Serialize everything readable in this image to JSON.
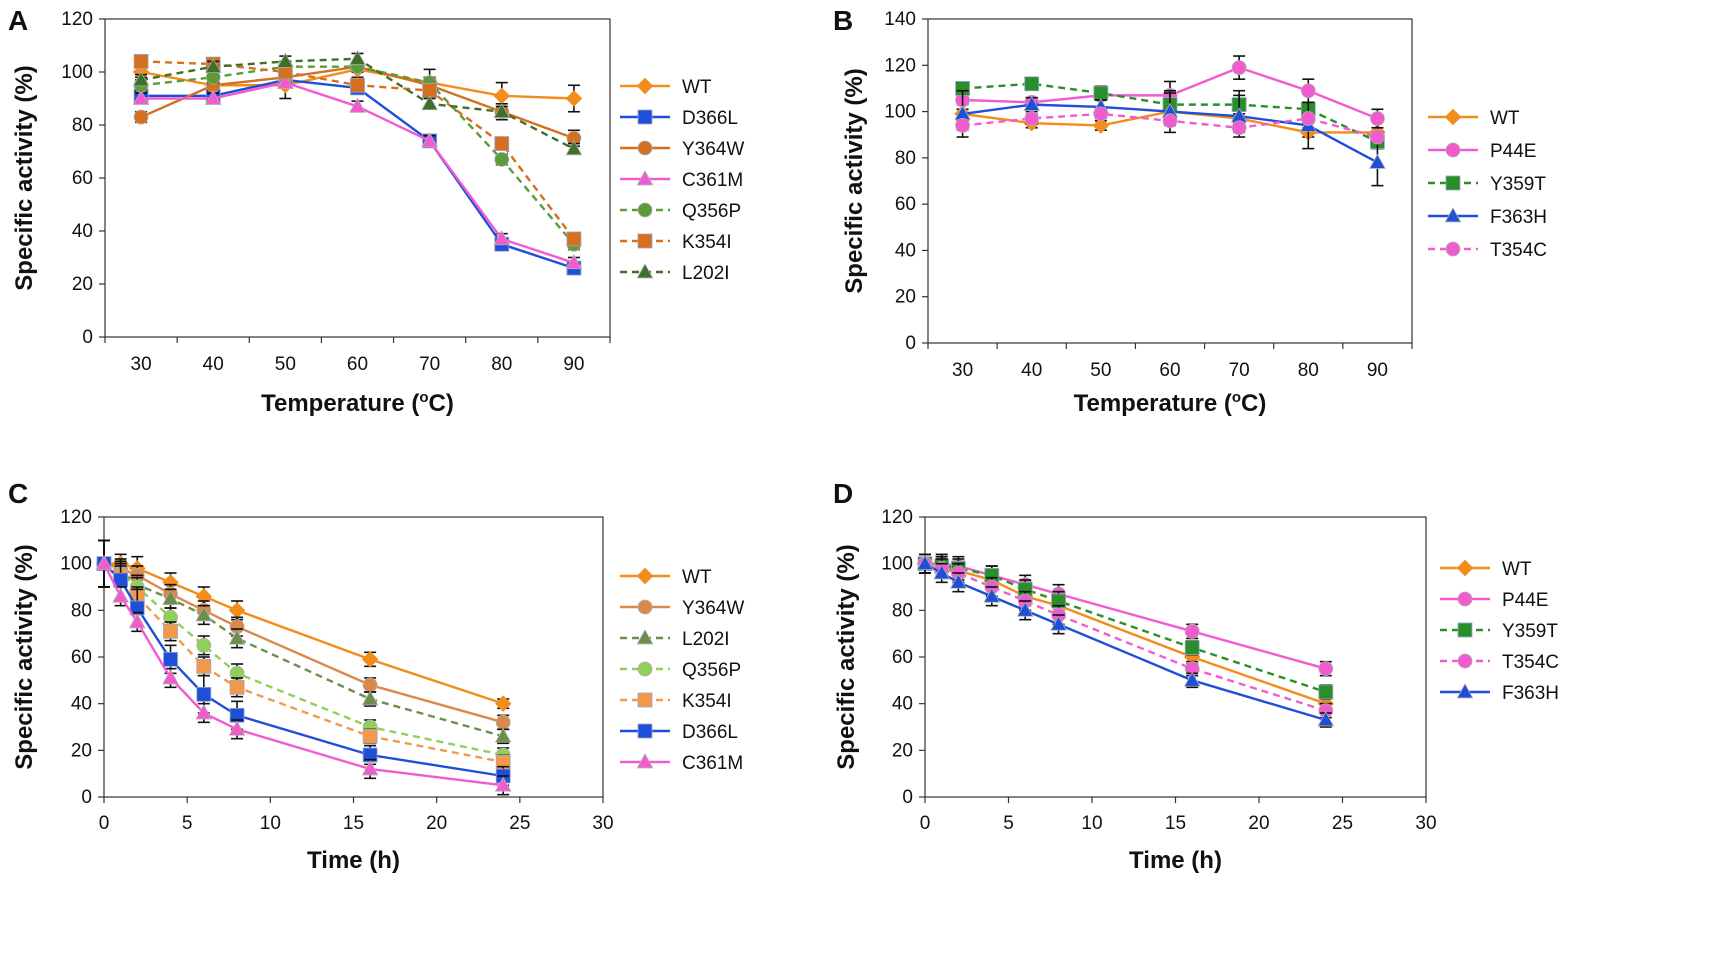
{
  "chart_data": [
    {
      "panel": "A",
      "type": "line",
      "xlabel": "Temperature (°C)",
      "xlabel_parts": [
        "Temperature (",
        "o",
        "C)"
      ],
      "ylabel": "Specific activity (%)",
      "x_mode": "category",
      "categories": [
        "30",
        "40",
        "50",
        "60",
        "70",
        "80",
        "90"
      ],
      "x": [
        30,
        40,
        50,
        60,
        70,
        80,
        90
      ],
      "ylim": [
        0,
        120
      ],
      "yticks": [
        0,
        20,
        40,
        60,
        80,
        100,
        120
      ],
      "legend": "right",
      "series": [
        {
          "name": "WT",
          "color": "#f28c1c",
          "dash": false,
          "marker": "diamond",
          "values": [
            100,
            95,
            95,
            101,
            96,
            91,
            90
          ],
          "errors": [
            2,
            2,
            5,
            3,
            5,
            5,
            5
          ]
        },
        {
          "name": "D366L",
          "color": "#1f4fd8",
          "dash": false,
          "marker": "square",
          "values": [
            91,
            91,
            97,
            94,
            74,
            35,
            26
          ],
          "errors": [
            2,
            2,
            2,
            2,
            2,
            2,
            2
          ]
        },
        {
          "name": "Y364W",
          "color": "#d4701f",
          "dash": false,
          "marker": "circle",
          "values": [
            83,
            95,
            98,
            102,
            95,
            85,
            75
          ],
          "errors": [
            2,
            2,
            3,
            2,
            3,
            3,
            3
          ]
        },
        {
          "name": "C361M",
          "color": "#f25bd0",
          "dash": false,
          "marker": "triangle",
          "values": [
            90,
            90,
            96,
            87,
            74,
            37,
            28
          ],
          "errors": [
            2,
            2,
            2,
            2,
            2,
            2,
            2
          ]
        },
        {
          "name": "Q356P",
          "color": "#5c9a3a",
          "dash": true,
          "marker": "circle",
          "values": [
            95,
            98,
            102,
            102,
            96,
            67,
            35
          ],
          "errors": [
            2,
            2,
            2,
            2,
            2,
            2,
            2
          ]
        },
        {
          "name": "K354I",
          "color": "#d4701f",
          "dash": true,
          "marker": "square",
          "values": [
            104,
            103,
            100,
            95,
            93,
            73,
            37
          ],
          "errors": [
            2,
            2,
            2,
            2,
            2,
            2,
            2
          ]
        },
        {
          "name": "L202I",
          "color": "#3f6f2a",
          "dash": true,
          "marker": "triangle",
          "values": [
            97,
            102,
            104,
            105,
            88,
            85,
            71
          ],
          "errors": [
            2,
            2,
            2,
            2,
            2,
            2,
            2
          ]
        }
      ]
    },
    {
      "panel": "B",
      "type": "line",
      "xlabel": "Temperature (°C)",
      "xlabel_parts": [
        "Temperature (",
        "o",
        "C)"
      ],
      "ylabel": "Specific activity (%)",
      "x_mode": "category",
      "categories": [
        "30",
        "40",
        "50",
        "60",
        "70",
        "80",
        "90"
      ],
      "x": [
        30,
        40,
        50,
        60,
        70,
        80,
        90
      ],
      "ylim": [
        0,
        140
      ],
      "yticks": [
        0,
        20,
        40,
        60,
        80,
        100,
        120,
        140
      ],
      "legend": "right",
      "series": [
        {
          "name": "WT",
          "color": "#f28c1c",
          "dash": false,
          "marker": "diamond",
          "values": [
            99,
            95,
            94,
            100,
            97,
            91,
            91
          ],
          "errors": [
            2,
            2,
            2,
            2,
            2,
            2,
            2
          ]
        },
        {
          "name": "P44E",
          "color": "#f25bd0",
          "dash": false,
          "marker": "circle",
          "values": [
            105,
            104,
            107,
            107,
            119,
            109,
            97
          ],
          "errors": [
            2,
            2,
            2,
            6,
            5,
            5,
            4
          ]
        },
        {
          "name": "Y359T",
          "color": "#2a8f2a",
          "dash": true,
          "marker": "square",
          "values": [
            110,
            112,
            108,
            103,
            103,
            101,
            87
          ],
          "errors": [
            2,
            2,
            3,
            5,
            6,
            3,
            3
          ]
        },
        {
          "name": "F363H",
          "color": "#1f4fd8",
          "dash": false,
          "marker": "triangle",
          "values": [
            99,
            103,
            102,
            100,
            98,
            94,
            78
          ],
          "errors": [
            10,
            3,
            3,
            9,
            9,
            10,
            10
          ]
        },
        {
          "name": "T354C",
          "color": "#f25bd0",
          "dash": true,
          "marker": "circle",
          "values": [
            94,
            97,
            99,
            96,
            93,
            97,
            89
          ],
          "errors": [
            2,
            2,
            2,
            2,
            2,
            2,
            2
          ]
        }
      ]
    },
    {
      "panel": "C",
      "type": "line",
      "xlabel": "Time (h)",
      "ylabel": "Specific activity (%)",
      "x_mode": "numeric",
      "x": [
        0,
        1,
        2,
        4,
        6,
        8,
        16,
        24
      ],
      "xlim": [
        0,
        30
      ],
      "xticks": [
        0,
        5,
        10,
        15,
        20,
        25,
        30
      ],
      "ylim": [
        0,
        120
      ],
      "yticks": [
        0,
        20,
        40,
        60,
        80,
        100,
        120
      ],
      "legend": "right",
      "series": [
        {
          "name": "WT",
          "color": "#f28c1c",
          "dash": false,
          "marker": "diamond",
          "values": [
            100,
            100,
            98,
            92,
            86,
            80,
            59,
            40
          ],
          "errors": [
            10,
            4,
            5,
            4,
            4,
            4,
            3,
            2
          ]
        },
        {
          "name": "Y364W",
          "color": "#d98a4a",
          "dash": false,
          "marker": "circle",
          "values": [
            100,
            98,
            95,
            87,
            80,
            73,
            48,
            32
          ],
          "errors": [
            10,
            4,
            4,
            4,
            4,
            4,
            3,
            3
          ]
        },
        {
          "name": "L202I",
          "color": "#6b8f4a",
          "dash": true,
          "marker": "triangle",
          "values": [
            100,
            97,
            91,
            85,
            78,
            68,
            42,
            26
          ],
          "errors": [
            10,
            4,
            4,
            4,
            4,
            4,
            3,
            3
          ]
        },
        {
          "name": "Q356P",
          "color": "#8fcf5a",
          "dash": true,
          "marker": "circle",
          "values": [
            100,
            96,
            90,
            77,
            65,
            53,
            30,
            18
          ],
          "errors": [
            10,
            4,
            4,
            4,
            4,
            4,
            3,
            3
          ]
        },
        {
          "name": "K354I",
          "color": "#f29a4a",
          "dash": true,
          "marker": "square",
          "values": [
            100,
            95,
            86,
            71,
            56,
            47,
            26,
            15
          ],
          "errors": [
            10,
            4,
            4,
            4,
            4,
            4,
            3,
            3
          ]
        },
        {
          "name": "D366L",
          "color": "#1f4fd8",
          "dash": false,
          "marker": "square",
          "values": [
            100,
            93,
            81,
            59,
            44,
            35,
            18,
            9
          ],
          "errors": [
            10,
            8,
            8,
            6,
            8,
            6,
            4,
            4
          ]
        },
        {
          "name": "C361M",
          "color": "#f25bd0",
          "dash": false,
          "marker": "triangle",
          "values": [
            100,
            86,
            75,
            51,
            36,
            29,
            12,
            5
          ],
          "errors": [
            10,
            4,
            4,
            4,
            4,
            4,
            4,
            4
          ]
        }
      ]
    },
    {
      "panel": "D",
      "type": "line",
      "xlabel": "Time (h)",
      "ylabel": "Specific activity (%)",
      "x_mode": "numeric",
      "x": [
        0,
        1,
        2,
        4,
        6,
        8,
        16,
        24
      ],
      "xlim": [
        0,
        30
      ],
      "xticks": [
        0,
        5,
        10,
        15,
        20,
        25,
        30
      ],
      "ylim": [
        0,
        120
      ],
      "yticks": [
        0,
        20,
        40,
        60,
        80,
        100,
        120
      ],
      "legend": "right",
      "series": [
        {
          "name": "WT",
          "color": "#f28c1c",
          "dash": false,
          "marker": "diamond",
          "values": [
            100,
            99,
            97,
            93,
            86,
            82,
            60,
            40
          ],
          "errors": [
            4,
            4,
            4,
            4,
            4,
            4,
            3,
            3
          ]
        },
        {
          "name": "P44E",
          "color": "#f25bd0",
          "dash": false,
          "marker": "circle",
          "values": [
            100,
            100,
            99,
            95,
            91,
            87,
            71,
            55
          ],
          "errors": [
            4,
            4,
            4,
            4,
            4,
            4,
            3,
            3
          ]
        },
        {
          "name": "Y359T",
          "color": "#2a8f2a",
          "dash": true,
          "marker": "square",
          "values": [
            100,
            99,
            98,
            95,
            89,
            84,
            64,
            45
          ],
          "errors": [
            4,
            4,
            4,
            4,
            4,
            4,
            3,
            3
          ]
        },
        {
          "name": "T354C",
          "color": "#f25bd0",
          "dash": true,
          "marker": "circle",
          "values": [
            100,
            98,
            96,
            90,
            84,
            78,
            55,
            37
          ],
          "errors": [
            4,
            4,
            4,
            4,
            4,
            4,
            3,
            3
          ]
        },
        {
          "name": "F363H",
          "color": "#1f4fd8",
          "dash": false,
          "marker": "triangle",
          "values": [
            100,
            96,
            92,
            86,
            80,
            74,
            50,
            33
          ],
          "errors": [
            4,
            4,
            4,
            4,
            4,
            4,
            3,
            3
          ]
        }
      ]
    }
  ]
}
